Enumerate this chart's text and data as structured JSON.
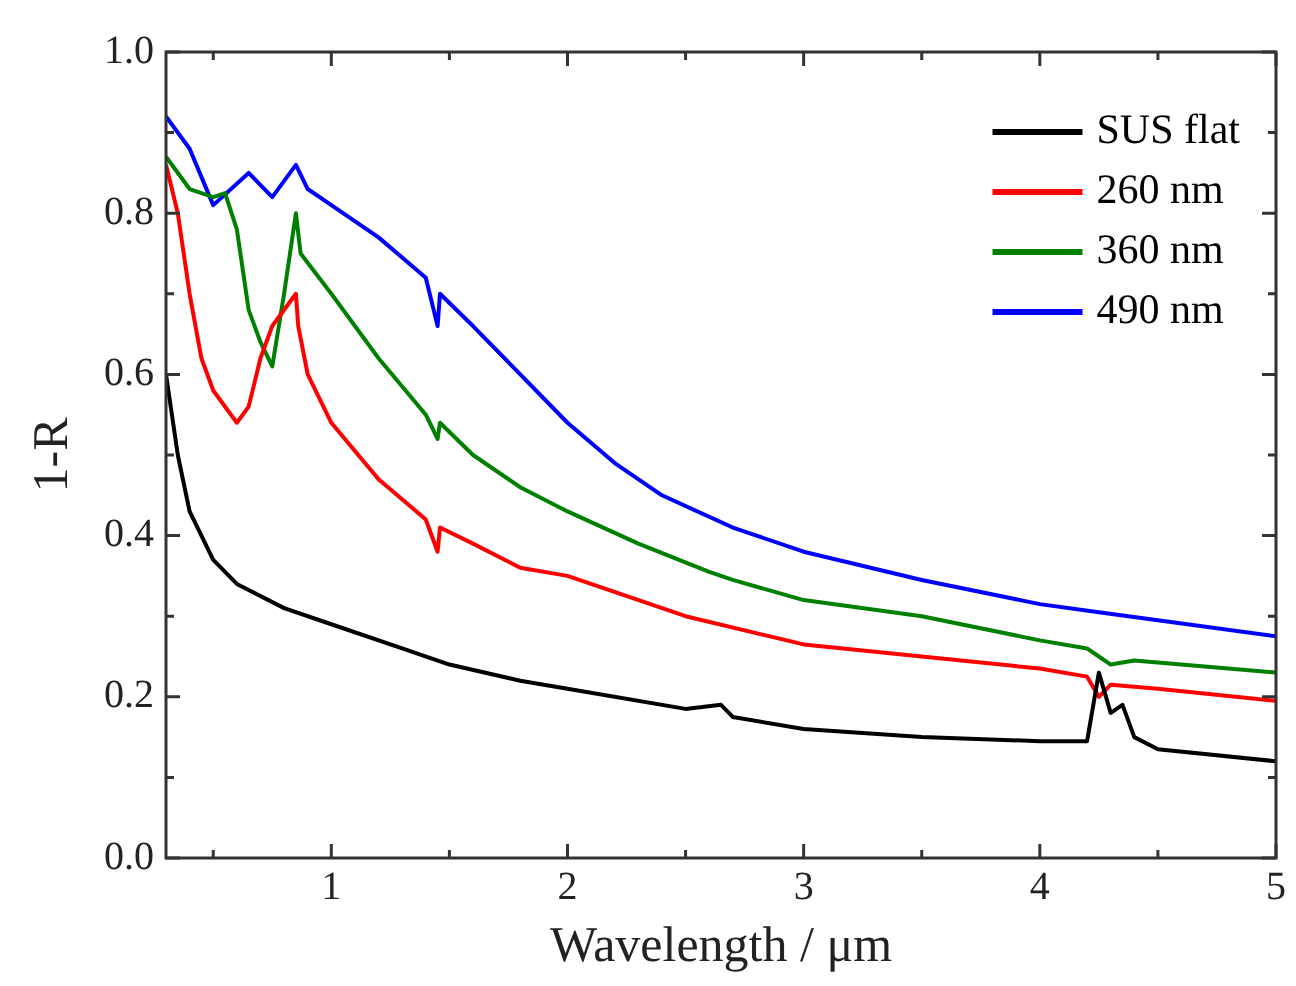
{
  "chart_data": {
    "type": "line",
    "xlabel": "Wavelength / μm",
    "ylabel": "1-R",
    "xlim": [
      0.3,
      5
    ],
    "ylim": [
      0,
      1
    ],
    "xticks": [
      {
        "value": 0.5,
        "label": null
      },
      1,
      {
        "value": 1.5,
        "label": null
      },
      2,
      {
        "value": 2.5,
        "label": null
      },
      3,
      {
        "value": 3.5,
        "label": null
      },
      4,
      {
        "value": 4.5,
        "label": null
      },
      5
    ],
    "yticks": [
      "0.0",
      {
        "value": 0.1,
        "label": null
      },
      0.2,
      {
        "value": 0.3,
        "label": null
      },
      0.4,
      {
        "value": 0.5,
        "label": null
      },
      0.6,
      {
        "value": 0.7,
        "label": null
      },
      0.8,
      {
        "value": 0.9,
        "label": null
      },
      "1.0"
    ],
    "grid": false,
    "legend": "top right",
    "marker": "none",
    "line_style": "solid",
    "series": [
      {
        "name": "SUS flat",
        "color": "#000000",
        "x": [
          0.3,
          0.35,
          0.4,
          0.5,
          0.6,
          0.8,
          1.0,
          1.3,
          1.5,
          1.8,
          2.0,
          2.5,
          2.65,
          2.7,
          3.0,
          3.5,
          4.0,
          4.2,
          4.25,
          4.3,
          4.35,
          4.4,
          4.5,
          5
        ],
        "values": [
          0.6,
          0.5,
          0.43,
          0.37,
          0.34,
          0.31,
          0.29,
          0.26,
          0.24,
          0.22,
          0.21,
          0.185,
          0.19,
          0.175,
          0.16,
          0.15,
          0.145,
          0.145,
          0.23,
          0.18,
          0.19,
          0.15,
          0.135,
          0.12
        ]
      },
      {
        "name": "260 nm",
        "color": "#ff0000",
        "x": [
          0.3,
          0.35,
          0.4,
          0.45,
          0.5,
          0.6,
          0.65,
          0.7,
          0.75,
          0.85,
          0.86,
          0.9,
          1.0,
          1.2,
          1.4,
          1.45,
          1.46,
          1.6,
          1.8,
          2.0,
          2.5,
          3.0,
          3.5,
          4.0,
          4.2,
          4.25,
          4.3,
          4.5,
          5
        ],
        "values": [
          0.86,
          0.8,
          0.7,
          0.62,
          0.58,
          0.54,
          0.56,
          0.62,
          0.66,
          0.7,
          0.66,
          0.6,
          0.54,
          0.47,
          0.42,
          0.38,
          0.41,
          0.39,
          0.36,
          0.35,
          0.3,
          0.265,
          0.25,
          0.235,
          0.225,
          0.2,
          0.215,
          0.21,
          0.195
        ]
      },
      {
        "name": "360 nm",
        "color": "#008000",
        "x": [
          0.3,
          0.4,
          0.5,
          0.55,
          0.6,
          0.65,
          0.7,
          0.75,
          0.8,
          0.85,
          0.87,
          1.0,
          1.2,
          1.4,
          1.45,
          1.46,
          1.6,
          1.8,
          2.0,
          2.3,
          2.6,
          2.7,
          3.0,
          3.5,
          4.0,
          4.2,
          4.25,
          4.3,
          4.4,
          5
        ],
        "values": [
          0.87,
          0.83,
          0.82,
          0.825,
          0.78,
          0.68,
          0.64,
          0.61,
          0.7,
          0.8,
          0.75,
          0.7,
          0.62,
          0.55,
          0.52,
          0.54,
          0.5,
          0.46,
          0.43,
          0.39,
          0.355,
          0.345,
          0.32,
          0.3,
          0.27,
          0.26,
          0.25,
          0.24,
          0.245,
          0.23
        ]
      },
      {
        "name": "490 nm",
        "color": "#0000ff",
        "x": [
          0.3,
          0.4,
          0.5,
          0.65,
          0.75,
          0.85,
          0.9,
          1.0,
          1.2,
          1.4,
          1.45,
          1.46,
          1.6,
          1.8,
          2.0,
          2.2,
          2.4,
          2.7,
          3.0,
          3.5,
          4.0,
          4.25,
          4.5,
          5
        ],
        "values": [
          0.92,
          0.88,
          0.81,
          0.85,
          0.82,
          0.86,
          0.83,
          0.81,
          0.77,
          0.72,
          0.66,
          0.7,
          0.66,
          0.6,
          0.54,
          0.49,
          0.45,
          0.41,
          0.38,
          0.345,
          0.315,
          0.305,
          0.295,
          0.275
        ]
      }
    ]
  }
}
